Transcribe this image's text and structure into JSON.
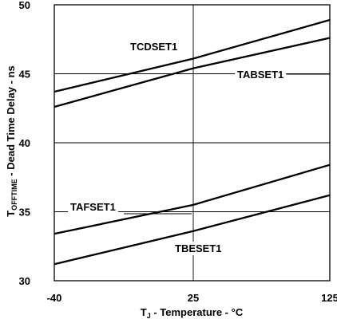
{
  "chart_data": {
    "type": "line",
    "xlabel": {
      "prefix": "T",
      "sub": "J",
      "rest": " - Temperature - °C"
    },
    "ylabel": {
      "prefix": "T",
      "sub": "OFFTIME",
      "rest": " - Dead Time Delay - ns"
    },
    "xlim": [
      -40,
      125
    ],
    "ylim": [
      30,
      50
    ],
    "xticks": [
      -40,
      25,
      125
    ],
    "yticks": [
      30,
      35,
      40,
      45,
      50
    ],
    "grid": true,
    "colors": {
      "line": "#000000",
      "grid": "#000000",
      "background": "#ffffff"
    },
    "x": [
      -40,
      25,
      125
    ],
    "series": [
      {
        "name": "TCDSET1",
        "values": [
          43.7,
          46.1,
          48.9
        ]
      },
      {
        "name": "TABSET1",
        "values": [
          42.6,
          45.4,
          47.6
        ]
      },
      {
        "name": "TAFSET1",
        "values": [
          33.4,
          35.5,
          38.4
        ]
      },
      {
        "name": "TBESET1",
        "values": [
          31.2,
          33.6,
          36.2
        ]
      }
    ]
  }
}
